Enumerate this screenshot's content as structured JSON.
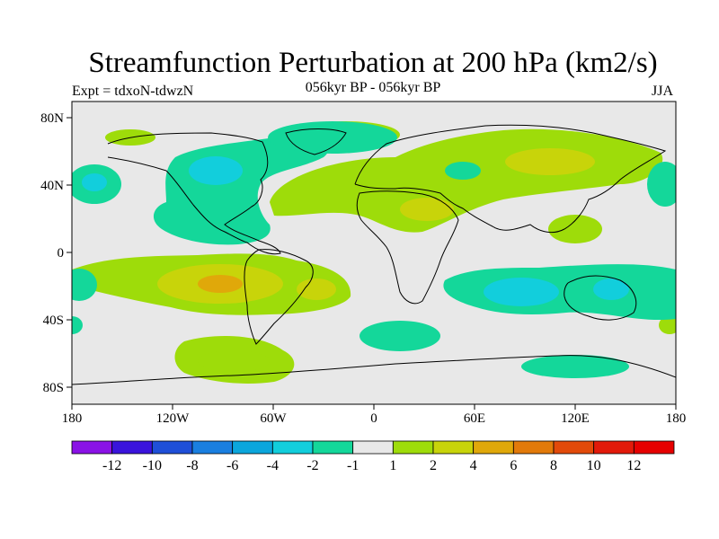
{
  "title": "Streamfunction Perturbation at 200 hPa (km2/s)",
  "subtitle": "056kyr BP - 056kyr BP",
  "left_string": "Expt = tdxoN-tdwzN",
  "right_string": "JJA",
  "lat_ticks": [
    "80N",
    "40N",
    "0",
    "40S",
    "80S"
  ],
  "lon_ticks": [
    "180",
    "120W",
    "60W",
    "0",
    "60E",
    "120E",
    "180"
  ],
  "colorbar": {
    "labels": [
      "-12",
      "-10",
      "-8",
      "-6",
      "-4",
      "-2",
      "-1",
      "1",
      "2",
      "4",
      "6",
      "8",
      "10",
      "12"
    ],
    "colors": [
      "#8a12e6",
      "#3a14dc",
      "#1f4fd8",
      "#1a7fe0",
      "#0ba6dc",
      "#12cedc",
      "#14d79a",
      "#e8e8e8",
      "#9edc0a",
      "#c8d40a",
      "#e0a80a",
      "#e27a0a",
      "#e24a0a",
      "#e21a0a",
      "#e60000"
    ]
  },
  "colors": {
    "background": "#e8e8e8",
    "coast": "#000000"
  }
}
